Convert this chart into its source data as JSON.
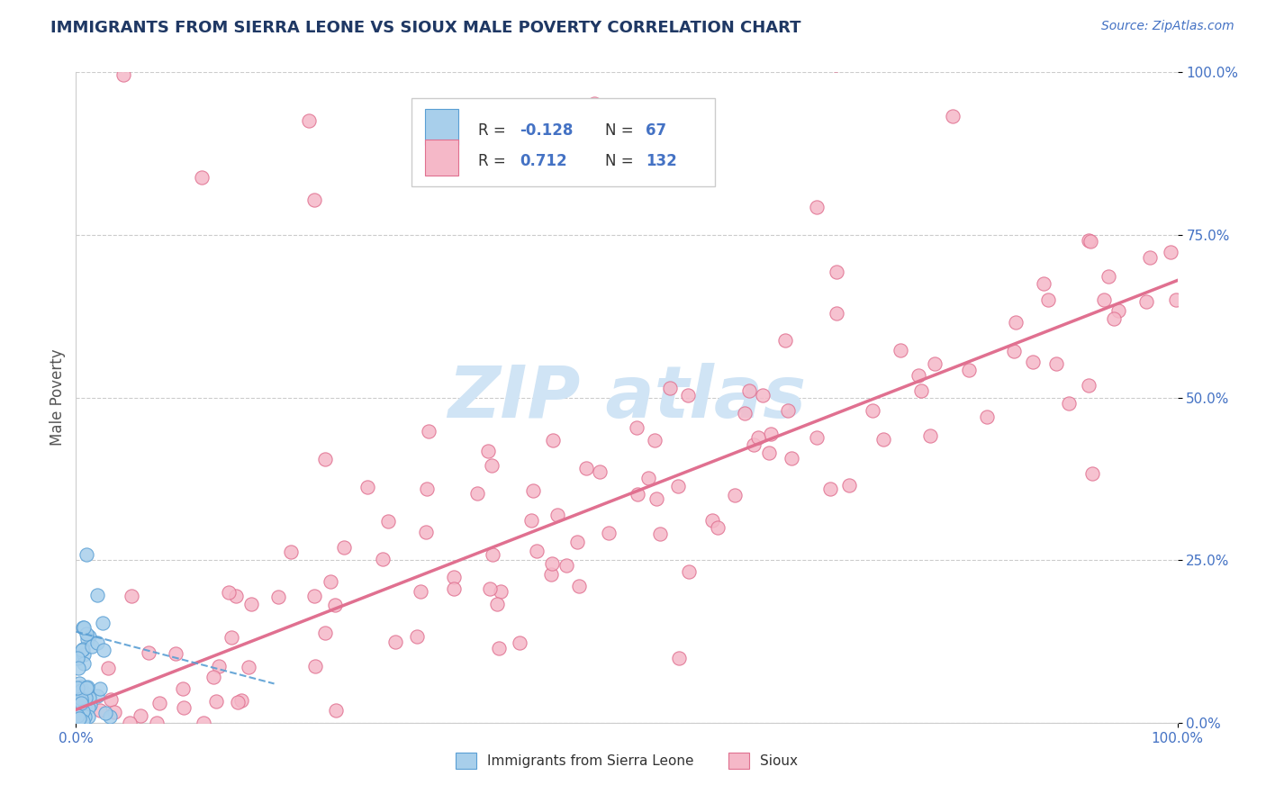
{
  "title": "IMMIGRANTS FROM SIERRA LEONE VS SIOUX MALE POVERTY CORRELATION CHART",
  "source": "Source: ZipAtlas.com",
  "ylabel": "Male Poverty",
  "xlim": [
    0.0,
    1.0
  ],
  "ylim": [
    0.0,
    1.0
  ],
  "xtick_labels": [
    "0.0%",
    "100.0%"
  ],
  "ytick_labels": [
    "0.0%",
    "25.0%",
    "50.0%",
    "75.0%",
    "100.0%"
  ],
  "ytick_positions": [
    0.0,
    0.25,
    0.5,
    0.75,
    1.0
  ],
  "color_blue": "#A8CFEB",
  "color_pink": "#F5B8C8",
  "color_blue_edge": "#5A9FD4",
  "color_pink_edge": "#E07090",
  "color_blue_text": "#4472C4",
  "title_color": "#1F3864",
  "watermark_color": "#D0E4F5",
  "legend_label1": "Immigrants from Sierra Leone",
  "legend_label2": "Sioux",
  "trend_pink_start_y": 0.02,
  "trend_pink_end_y": 0.68,
  "trend_blue_start_x": 0.0,
  "trend_blue_start_y": 0.14,
  "trend_blue_end_x": 0.18,
  "trend_blue_end_y": 0.06,
  "grid_color": "#CCCCCC",
  "bg_color": "#FFFFFF"
}
